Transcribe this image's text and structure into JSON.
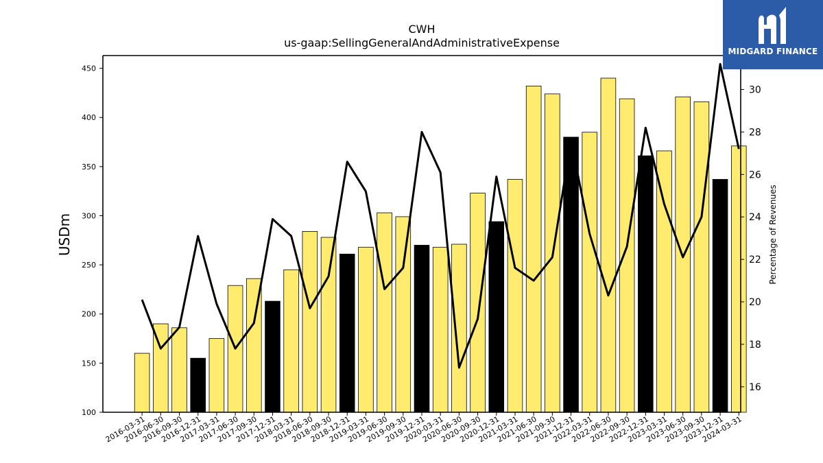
{
  "chart_data": {
    "type": "bar",
    "title": "CWH",
    "subtitle": "us-gaap:SellingGeneralAndAdministrativeExpense",
    "ylabel": "USDm",
    "ylabel_right": "Percentage of Revenues",
    "ylim": [
      100,
      463
    ],
    "ylim_right": [
      14.8,
      31.6
    ],
    "yticks": [
      100,
      150,
      200,
      250,
      300,
      350,
      400,
      450
    ],
    "yticks_right": [
      16,
      18,
      20,
      22,
      24,
      26,
      28,
      30
    ],
    "categories": [
      "2016-03-31",
      "2016-06-30",
      "2016-09-30",
      "2016-12-31",
      "2017-03-31",
      "2017-06-30",
      "2017-09-30",
      "2017-12-31",
      "2018-03-31",
      "2018-06-30",
      "2018-09-30",
      "2018-12-31",
      "2019-03-31",
      "2019-06-30",
      "2019-09-30",
      "2019-12-31",
      "2020-03-31",
      "2020-06-30",
      "2020-09-30",
      "2020-12-31",
      "2021-03-31",
      "2021-06-30",
      "2021-09-30",
      "2021-12-31",
      "2022-03-31",
      "2022-06-30",
      "2022-09-30",
      "2022-12-31",
      "2023-03-31",
      "2023-06-30",
      "2023-09-30",
      "2023-12-31",
      "2024-03-31"
    ],
    "series": [
      {
        "type": "bar",
        "values": [
          160,
          190,
          186,
          155,
          175,
          229,
          236,
          213,
          245,
          284,
          278,
          261,
          268,
          303,
          299,
          270,
          268,
          271,
          323,
          294,
          337,
          432,
          424,
          380,
          385,
          440,
          419,
          361,
          366,
          421,
          416,
          337,
          371
        ],
        "colors": [
          "#ffec6e",
          "#ffec6e",
          "#ffec6e",
          "#000000",
          "#ffec6e",
          "#ffec6e",
          "#ffec6e",
          "#000000",
          "#ffec6e",
          "#ffec6e",
          "#ffec6e",
          "#000000",
          "#ffec6e",
          "#ffec6e",
          "#ffec6e",
          "#000000",
          "#ffec6e",
          "#ffec6e",
          "#ffec6e",
          "#000000",
          "#ffec6e",
          "#ffec6e",
          "#ffec6e",
          "#000000",
          "#ffec6e",
          "#ffec6e",
          "#ffec6e",
          "#000000",
          "#ffec6e",
          "#ffec6e",
          "#ffec6e",
          "#000000",
          "#ffec6e"
        ]
      },
      {
        "type": "line",
        "axis": "right",
        "color": "#000000",
        "values": [
          20.1,
          17.8,
          18.8,
          23.1,
          19.9,
          17.8,
          19.0,
          23.9,
          23.1,
          19.7,
          21.2,
          26.6,
          25.2,
          20.6,
          21.6,
          28.0,
          26.1,
          16.9,
          19.2,
          25.9,
          21.6,
          21.0,
          22.1,
          27.6,
          23.2,
          20.3,
          22.6,
          28.2,
          24.6,
          22.1,
          24.0,
          31.2,
          27.2
        ]
      }
    ],
    "grid": false,
    "legend": "none"
  },
  "logo": {
    "brand": "MIDGARD FINANCE"
  }
}
